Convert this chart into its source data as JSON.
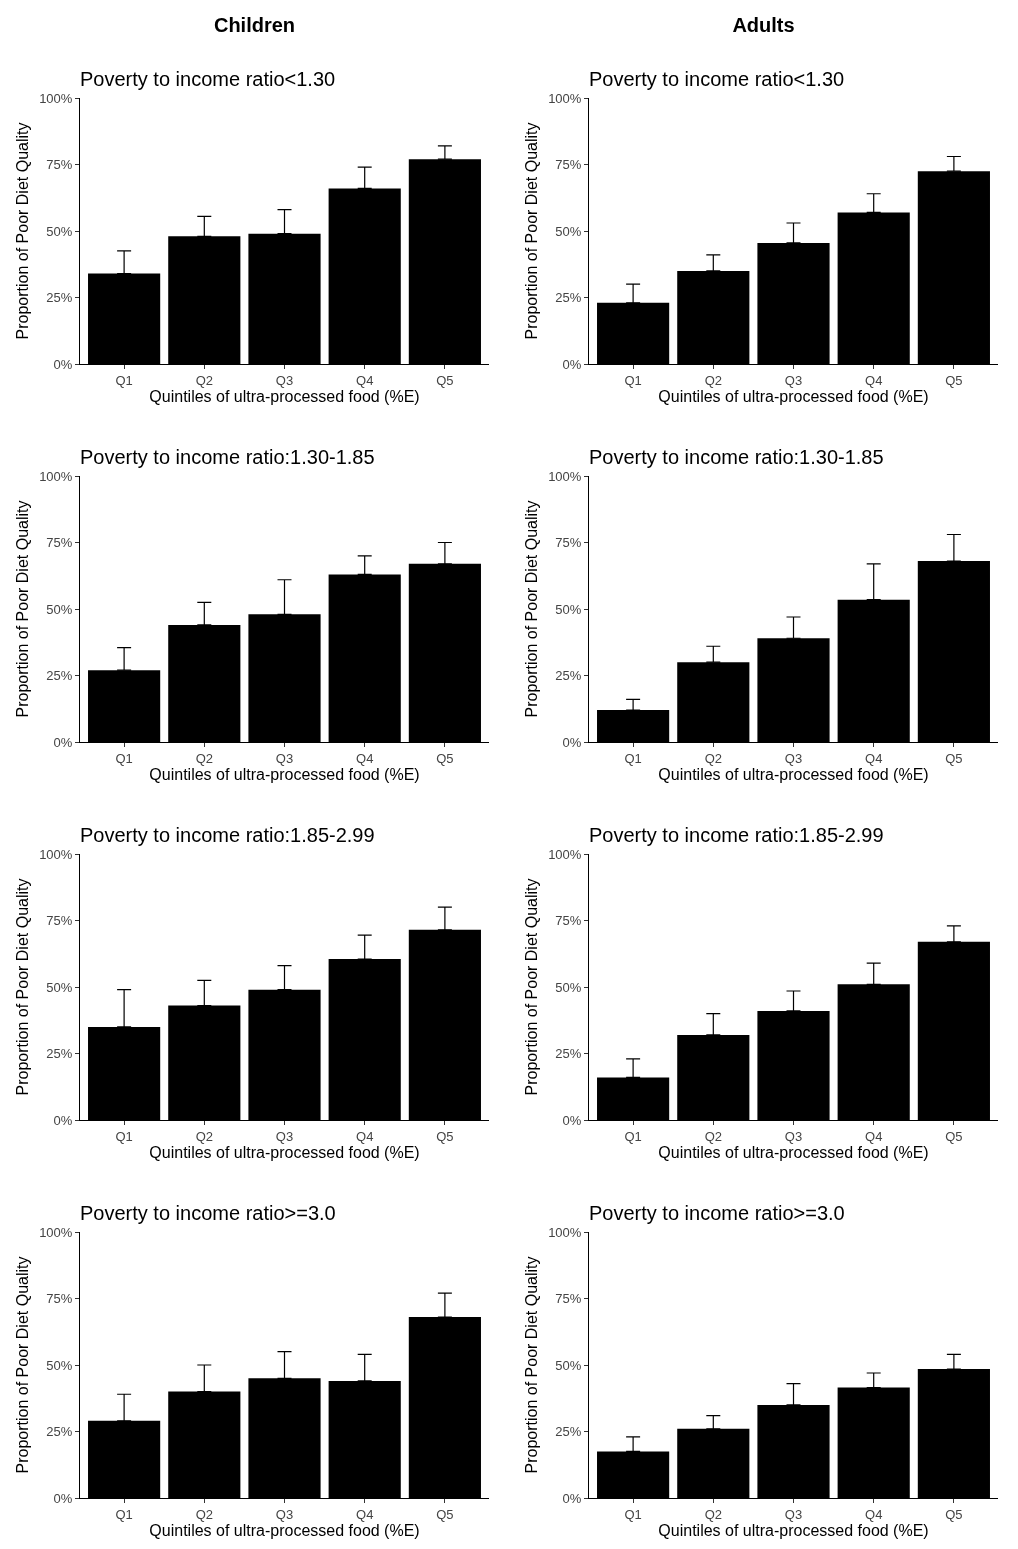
{
  "chart_data": [
    {
      "type": "bar",
      "title": "Poverty to income ratio<1.30",
      "annotations": [
        "Children"
      ],
      "xlabel": "Quintiles of ultra-processed food (%E)",
      "ylabel": "Proportion of Poor Diet Quality",
      "categories": [
        "Q1",
        "Q2",
        "Q3",
        "Q4",
        "Q5"
      ],
      "color": "#000000",
      "values": [
        34,
        48,
        49,
        66,
        77
      ],
      "errors": [
        [
          34,
          42.5
        ],
        [
          48,
          55.5
        ],
        [
          49,
          58
        ],
        [
          66,
          74
        ],
        [
          77,
          82
        ]
      ],
      "ylim": [
        0,
        100
      ],
      "yticks": [
        {
          "value": 0,
          "label": "0%"
        },
        {
          "value": 25,
          "label": "25%"
        },
        {
          "value": 50,
          "label": "50%"
        },
        {
          "value": 75,
          "label": "75%"
        },
        {
          "value": 100,
          "label": "100%"
        }
      ]
    },
    {
      "type": "bar",
      "title": "Poverty to income ratio<1.30",
      "annotations": [
        "Adults"
      ],
      "xlabel": "Quintiles of ultra-processed food (%E)",
      "ylabel": "Proportion of Poor Diet Quality",
      "categories": [
        "Q1",
        "Q2",
        "Q3",
        "Q4",
        "Q5"
      ],
      "color": "#000000",
      "values": [
        23,
        35,
        45.5,
        57,
        72.5
      ],
      "errors": [
        [
          23,
          30
        ],
        [
          35,
          41
        ],
        [
          45.5,
          53
        ],
        [
          57,
          64
        ],
        [
          72.5,
          78
        ]
      ],
      "ylim": [
        0,
        100
      ],
      "yticks": [
        {
          "value": 0,
          "label": "0%"
        },
        {
          "value": 25,
          "label": "25%"
        },
        {
          "value": 50,
          "label": "50%"
        },
        {
          "value": 75,
          "label": "75%"
        },
        {
          "value": 100,
          "label": "100%"
        }
      ]
    },
    {
      "type": "bar",
      "title": "Poverty to income ratio:1.30-1.85",
      "xlabel": "Quintiles of ultra-processed food (%E)",
      "ylabel": "Proportion of Poor Diet Quality",
      "categories": [
        "Q1",
        "Q2",
        "Q3",
        "Q4",
        "Q5"
      ],
      "color": "#000000",
      "values": [
        27,
        44,
        48,
        63,
        67
      ],
      "errors": [
        [
          27,
          35.5
        ],
        [
          44,
          52.5
        ],
        [
          48,
          61
        ],
        [
          63,
          70
        ],
        [
          67,
          75
        ]
      ],
      "ylim": [
        0,
        100
      ],
      "yticks": [
        {
          "value": 0,
          "label": "0%"
        },
        {
          "value": 25,
          "label": "25%"
        },
        {
          "value": 50,
          "label": "50%"
        },
        {
          "value": 75,
          "label": "75%"
        },
        {
          "value": 100,
          "label": "100%"
        }
      ]
    },
    {
      "type": "bar",
      "title": "Poverty to income ratio:1.30-1.85",
      "xlabel": "Quintiles of ultra-processed food (%E)",
      "ylabel": "Proportion of Poor Diet Quality",
      "categories": [
        "Q1",
        "Q2",
        "Q3",
        "Q4",
        "Q5"
      ],
      "color": "#000000",
      "values": [
        12,
        30,
        39,
        53.5,
        68
      ],
      "errors": [
        [
          12,
          16
        ],
        [
          30,
          36
        ],
        [
          39,
          47
        ],
        [
          53.5,
          67
        ],
        [
          68,
          78
        ]
      ],
      "ylim": [
        0,
        100
      ],
      "yticks": [
        {
          "value": 0,
          "label": "0%"
        },
        {
          "value": 25,
          "label": "25%"
        },
        {
          "value": 50,
          "label": "50%"
        },
        {
          "value": 75,
          "label": "75%"
        },
        {
          "value": 100,
          "label": "100%"
        }
      ]
    },
    {
      "type": "bar",
      "title": "Poverty to income ratio:1.85-2.99",
      "xlabel": "Quintiles of ultra-processed food (%E)",
      "ylabel": "Proportion of Poor Diet Quality",
      "categories": [
        "Q1",
        "Q2",
        "Q3",
        "Q4",
        "Q5"
      ],
      "color": "#000000",
      "values": [
        35,
        43,
        49,
        60.5,
        71.5
      ],
      "errors": [
        [
          35,
          49
        ],
        [
          43,
          52.5
        ],
        [
          49,
          58
        ],
        [
          60.5,
          69.5
        ],
        [
          71.5,
          80
        ]
      ],
      "ylim": [
        0,
        100
      ],
      "yticks": [
        {
          "value": 0,
          "label": "0%"
        },
        {
          "value": 25,
          "label": "25%"
        },
        {
          "value": 50,
          "label": "50%"
        },
        {
          "value": 75,
          "label": "75%"
        },
        {
          "value": 100,
          "label": "100%"
        }
      ]
    },
    {
      "type": "bar",
      "title": "Poverty to income ratio:1.85-2.99",
      "xlabel": "Quintiles of ultra-processed food (%E)",
      "ylabel": "Proportion of Poor Diet Quality",
      "categories": [
        "Q1",
        "Q2",
        "Q3",
        "Q4",
        "Q5"
      ],
      "color": "#000000",
      "values": [
        16,
        32,
        41,
        51,
        67
      ],
      "errors": [
        [
          16,
          23
        ],
        [
          32,
          40
        ],
        [
          41,
          48.5
        ],
        [
          51,
          59
        ],
        [
          67,
          73
        ]
      ],
      "ylim": [
        0,
        100
      ],
      "yticks": [
        {
          "value": 0,
          "label": "0%"
        },
        {
          "value": 25,
          "label": "25%"
        },
        {
          "value": 50,
          "label": "50%"
        },
        {
          "value": 75,
          "label": "75%"
        },
        {
          "value": 100,
          "label": "100%"
        }
      ]
    },
    {
      "type": "bar",
      "title": "Poverty to income ratio>=3.0",
      "xlabel": "Quintiles of ultra-processed food (%E)",
      "ylabel": "Proportion of Poor Diet Quality",
      "categories": [
        "Q1",
        "Q2",
        "Q3",
        "Q4",
        "Q5"
      ],
      "color": "#000000",
      "values": [
        29,
        40,
        45,
        44,
        68
      ],
      "errors": [
        [
          29,
          39
        ],
        [
          40,
          50
        ],
        [
          45,
          55
        ],
        [
          44,
          54
        ],
        [
          68,
          77
        ]
      ],
      "ylim": [
        0,
        100
      ],
      "yticks": [
        {
          "value": 0,
          "label": "0%"
        },
        {
          "value": 25,
          "label": "25%"
        },
        {
          "value": 50,
          "label": "50%"
        },
        {
          "value": 75,
          "label": "75%"
        },
        {
          "value": 100,
          "label": "100%"
        }
      ]
    },
    {
      "type": "bar",
      "title": "Poverty to income ratio>=3.0",
      "xlabel": "Quintiles of ultra-processed food (%E)",
      "ylabel": "Proportion of Poor Diet Quality",
      "categories": [
        "Q1",
        "Q2",
        "Q3",
        "Q4",
        "Q5"
      ],
      "color": "#000000",
      "values": [
        17.5,
        26,
        35,
        41.5,
        48.5
      ],
      "errors": [
        [
          17.5,
          23
        ],
        [
          26,
          31
        ],
        [
          35,
          43
        ],
        [
          41.5,
          47
        ],
        [
          48.5,
          54
        ]
      ],
      "ylim": [
        0,
        100
      ],
      "yticks": [
        {
          "value": 0,
          "label": "0%"
        },
        {
          "value": 25,
          "label": "25%"
        },
        {
          "value": 50,
          "label": "50%"
        },
        {
          "value": 75,
          "label": "75%"
        },
        {
          "value": 100,
          "label": "100%"
        }
      ]
    }
  ]
}
